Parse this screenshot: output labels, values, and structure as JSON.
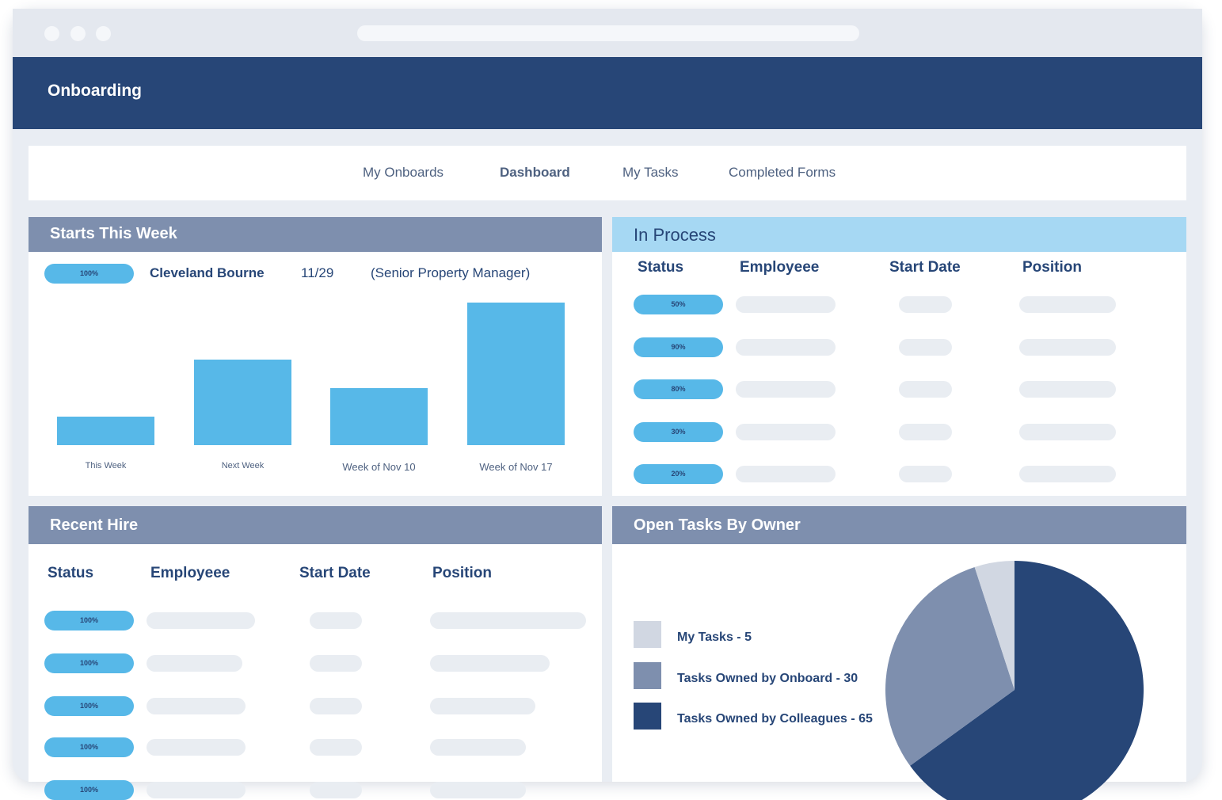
{
  "app": {
    "title": "Onboarding"
  },
  "nav": {
    "tabs": [
      "My Onboards",
      "Dashboard",
      "My Tasks",
      "Completed Forms"
    ],
    "active": "Dashboard"
  },
  "starts_this_week": {
    "title": "Starts This Week",
    "featured": {
      "status": "100%",
      "name": "Cleveland Bourne",
      "date": "11/29",
      "position": "(Senior Property Manager)"
    }
  },
  "in_process": {
    "title": "In Process",
    "columns": [
      "Status",
      "Employeee",
      "Start Date",
      "Position"
    ],
    "rows": [
      "50%",
      "90%",
      "80%",
      "30%",
      "20%"
    ]
  },
  "recent_hire": {
    "title": "Recent Hire",
    "columns": [
      "Status",
      "Employeee",
      "Start Date",
      "Position"
    ],
    "rows": [
      "100%",
      "100%",
      "100%",
      "100%",
      "100%"
    ]
  },
  "open_tasks": {
    "title": "Open Tasks By Owner",
    "legend": [
      "My Tasks - 5",
      "Tasks Owned by Onboard - 30",
      "Tasks Owned by Colleagues - 65"
    ]
  },
  "colors": {
    "header": "#274677",
    "accent": "#57b8e8",
    "panel_head": "#7e8fae",
    "in_process_head": "#a6d8f3"
  },
  "chart_data": [
    {
      "type": "bar",
      "categories": [
        "This Week",
        "Next Week",
        "Week of Nov 10",
        "Week of Nov 17"
      ],
      "values": [
        2,
        6,
        4,
        10
      ],
      "ylim": [
        0,
        10
      ],
      "grid": false,
      "color": "#57b8e8"
    },
    {
      "type": "pie",
      "categories": [
        "My Tasks",
        "Tasks Owned by Onboard",
        "Tasks Owned by Colleagues"
      ],
      "values": [
        5,
        30,
        65
      ],
      "colors": [
        "#d1d7e2",
        "#7e8fae",
        "#274677"
      ],
      "legend": "left"
    }
  ]
}
